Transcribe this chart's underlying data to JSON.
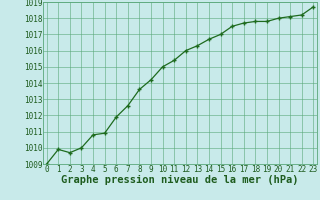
{
  "x": [
    0,
    1,
    2,
    3,
    4,
    5,
    6,
    7,
    8,
    9,
    10,
    11,
    12,
    13,
    14,
    15,
    16,
    17,
    18,
    19,
    20,
    21,
    22,
    23
  ],
  "y": [
    1009.0,
    1009.9,
    1009.7,
    1010.0,
    1010.8,
    1010.9,
    1011.9,
    1012.6,
    1013.6,
    1014.2,
    1015.0,
    1015.4,
    1016.0,
    1016.3,
    1016.7,
    1017.0,
    1017.5,
    1017.7,
    1017.8,
    1017.8,
    1018.0,
    1018.1,
    1018.2,
    1018.7
  ],
  "ylim": [
    1009,
    1019
  ],
  "xlim": [
    -0.3,
    23.3
  ],
  "yticks": [
    1009,
    1010,
    1011,
    1012,
    1013,
    1014,
    1015,
    1016,
    1017,
    1018,
    1019
  ],
  "xticks": [
    0,
    1,
    2,
    3,
    4,
    5,
    6,
    7,
    8,
    9,
    10,
    11,
    12,
    13,
    14,
    15,
    16,
    17,
    18,
    19,
    20,
    21,
    22,
    23
  ],
  "line_color": "#1e6b1e",
  "marker": "+",
  "bg_color": "#c8eaea",
  "grid_color": "#5aa87a",
  "xlabel": "Graphe pression niveau de la mer (hPa)",
  "xlabel_color": "#1e5c1e",
  "tick_color": "#1e5c1e",
  "axis_label_fontsize": 7.5,
  "tick_fontsize": 5.5
}
